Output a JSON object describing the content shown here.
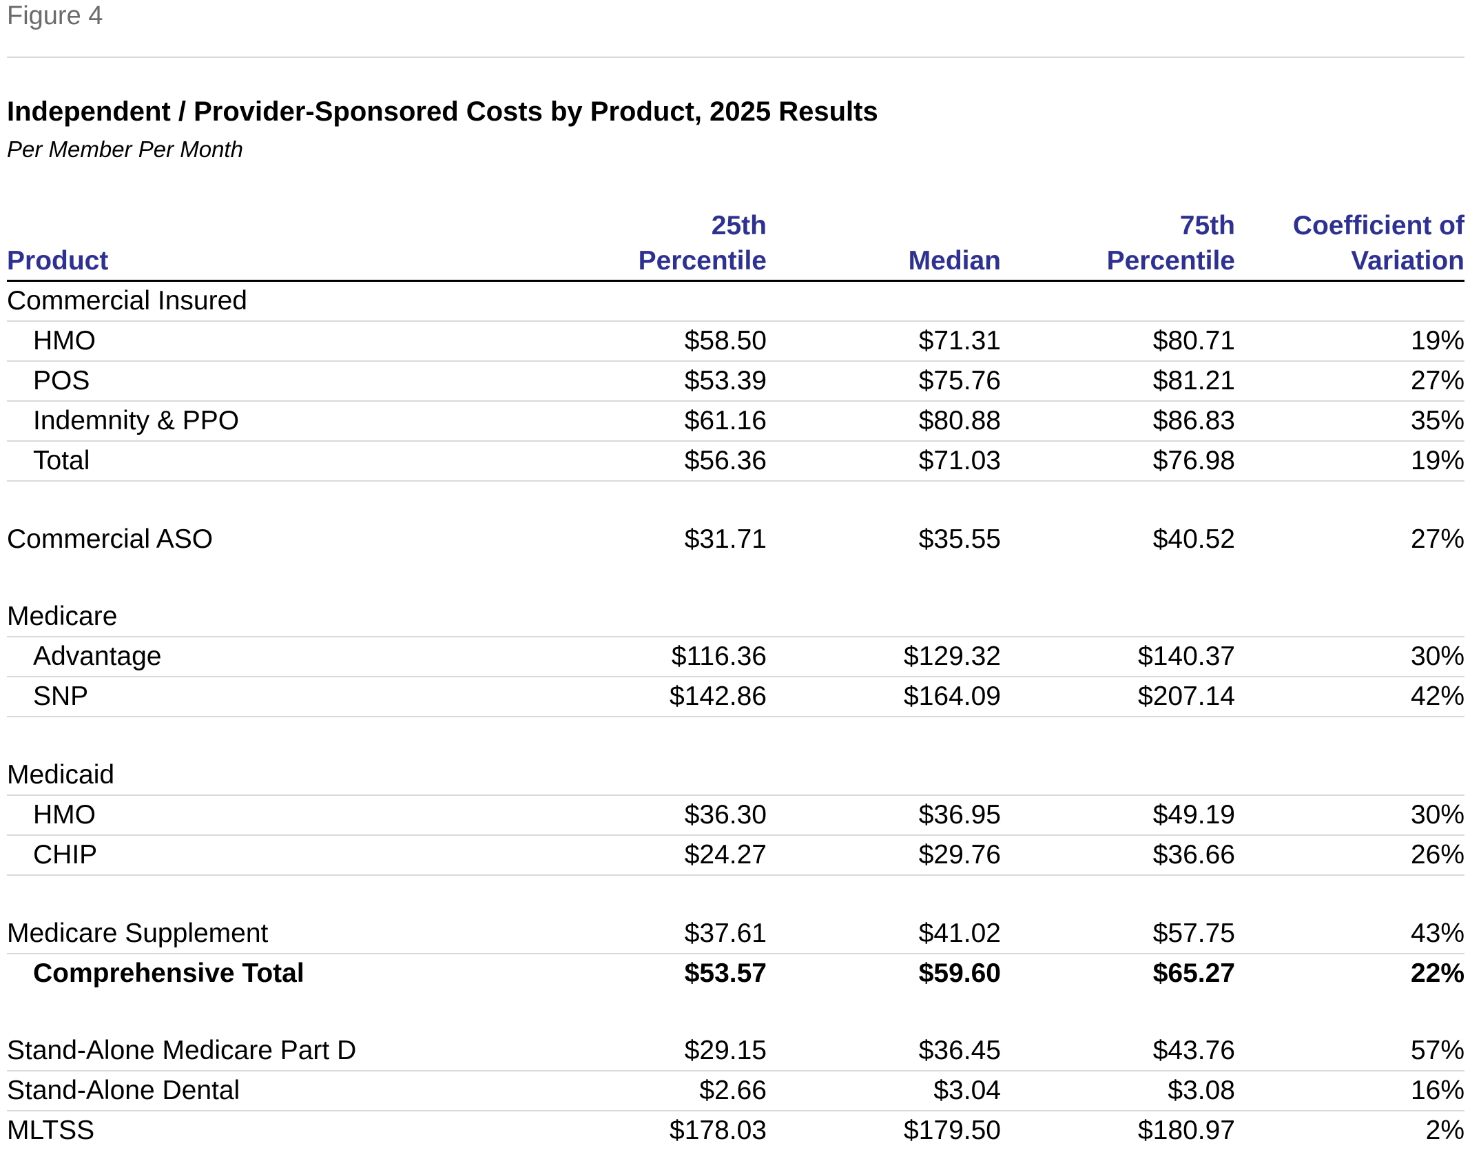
{
  "figure_label": "Figure 4",
  "title": "Independent / Provider-Sponsored Costs by Product, 2025 Results",
  "subtitle": "Per Member Per Month",
  "colors": {
    "header_text": "#2e3192",
    "figure_label": "#6b6b6b",
    "row_rule": "#d9d9d9"
  },
  "columns": {
    "product": "Product",
    "p25_line1": "25th",
    "p25_line2": "Percentile",
    "median": "Median",
    "p75_line1": "75th",
    "p75_line2": "Percentile",
    "cov_line1": "Coefficient of",
    "cov_line2": "Variation"
  },
  "rows": [
    {
      "label": "Commercial Insured",
      "p25": "",
      "median": "",
      "p75": "",
      "cov": ""
    },
    {
      "label": "HMO",
      "p25": "$58.50",
      "median": "$71.31",
      "p75": "$80.71",
      "cov": "19%"
    },
    {
      "label": "POS",
      "p25": "$53.39",
      "median": "$75.76",
      "p75": "$81.21",
      "cov": "27%"
    },
    {
      "label": "Indemnity & PPO",
      "p25": "$61.16",
      "median": "$80.88",
      "p75": "$86.83",
      "cov": "35%"
    },
    {
      "label": "Total",
      "p25": "$56.36",
      "median": "$71.03",
      "p75": "$76.98",
      "cov": "19%"
    },
    {
      "label": "Commercial ASO",
      "p25": "$31.71",
      "median": "$35.55",
      "p75": "$40.52",
      "cov": "27%"
    },
    {
      "label": "Medicare",
      "p25": "",
      "median": "",
      "p75": "",
      "cov": ""
    },
    {
      "label": "Advantage",
      "p25": "$116.36",
      "median": "$129.32",
      "p75": "$140.37",
      "cov": "30%"
    },
    {
      "label": "SNP",
      "p25": "$142.86",
      "median": "$164.09",
      "p75": "$207.14",
      "cov": "42%"
    },
    {
      "label": "Medicaid",
      "p25": "",
      "median": "",
      "p75": "",
      "cov": ""
    },
    {
      "label": "HMO",
      "p25": "$36.30",
      "median": "$36.95",
      "p75": "$49.19",
      "cov": "30%"
    },
    {
      "label": "CHIP",
      "p25": "$24.27",
      "median": "$29.76",
      "p75": "$36.66",
      "cov": "26%"
    },
    {
      "label": "Medicare Supplement",
      "p25": "$37.61",
      "median": "$41.02",
      "p75": "$57.75",
      "cov": "43%"
    },
    {
      "label": "Comprehensive Total",
      "p25": "$53.57",
      "median": "$59.60",
      "p75": "$65.27",
      "cov": "22%"
    },
    {
      "label": "Stand-Alone Medicare Part D",
      "p25": "$29.15",
      "median": "$36.45",
      "p75": "$43.76",
      "cov": "57%"
    },
    {
      "label": "Stand-Alone Dental",
      "p25": "$2.66",
      "median": "$3.04",
      "p75": "$3.08",
      "cov": "16%"
    },
    {
      "label": "MLTSS",
      "p25": "$178.03",
      "median": "$179.50",
      "p75": "$180.97",
      "cov": "2%"
    }
  ]
}
